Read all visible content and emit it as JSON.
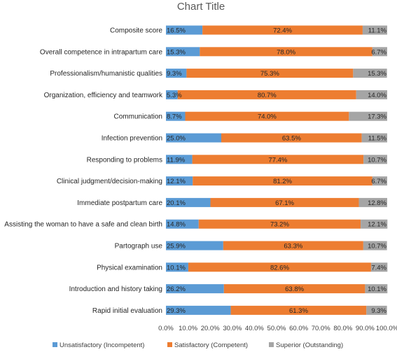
{
  "chart_data": {
    "type": "bar",
    "orientation": "horizontal",
    "stacked": true,
    "title": "Chart Title",
    "xlabel": "",
    "ylabel": "",
    "xlim": [
      0,
      100
    ],
    "x_ticks": [
      "0.0%",
      "10.0%",
      "20.0%",
      "30.0%",
      "40.0%",
      "50.0%",
      "60.0%",
      "70.0%",
      "80.0%",
      "90.0%",
      "100.0%"
    ],
    "grid": false,
    "legend_position": "bottom",
    "categories": [
      "Composite score",
      "Overall competence in intrapartum care",
      "Professionalism/humanistic qualities",
      "Organization, efficiency and teamwork",
      "Communication",
      "Infection prevention",
      "Responding to problems",
      "Clinical judgment/decision-making",
      "Immediate postpartum  care",
      "Assisting the woman to have a safe and clean birth",
      "Partograph use",
      "Physical examination",
      "Introduction and history taking",
      "Rapid initial evaluation"
    ],
    "series": [
      {
        "name": "Unsatisfactory (Incompetent)",
        "color": "#5B9BD5",
        "values": [
          16.5,
          15.3,
          9.3,
          5.3,
          8.7,
          25.0,
          11.9,
          12.1,
          20.1,
          14.8,
          25.9,
          10.1,
          26.2,
          29.3
        ],
        "labels": [
          "16.5%",
          "15.3%",
          "9.3%",
          "5.3%",
          "8.7%",
          "25.0%",
          "11.9%",
          "12.1%",
          "20.1%",
          "14.8%",
          "25.9%",
          "10.1%",
          "26.2%",
          "29.3%"
        ]
      },
      {
        "name": "Satisfactory (Competent)",
        "color": "#ED7D31",
        "values": [
          72.4,
          78.0,
          75.3,
          80.7,
          74.0,
          63.5,
          77.4,
          81.2,
          67.1,
          73.2,
          63.3,
          82.6,
          63.8,
          61.3
        ],
        "labels": [
          "72.4%",
          "78.0%",
          "75.3%",
          "80.7%",
          "74.0%",
          "63.5%",
          "77.4%",
          "81.2%",
          "67.1%",
          "73.2%",
          "63.3%",
          "82.6%",
          "63.8%",
          "61.3%"
        ]
      },
      {
        "name": "Superior (Outstanding)",
        "color": "#A5A5A5",
        "values": [
          11.1,
          6.7,
          15.3,
          14.0,
          17.3,
          11.5,
          10.7,
          6.7,
          12.8,
          12.1,
          10.7,
          7.4,
          10.1,
          9.3
        ],
        "labels": [
          "11.1%",
          "6.7%",
          "15.3%",
          "14.0%",
          "17.3%",
          "11.5%",
          "10.7%",
          "6.7%",
          "12.8%",
          "12.1%",
          "10.7%",
          "7.4%",
          "10.1%",
          "9.3%"
        ]
      }
    ]
  }
}
